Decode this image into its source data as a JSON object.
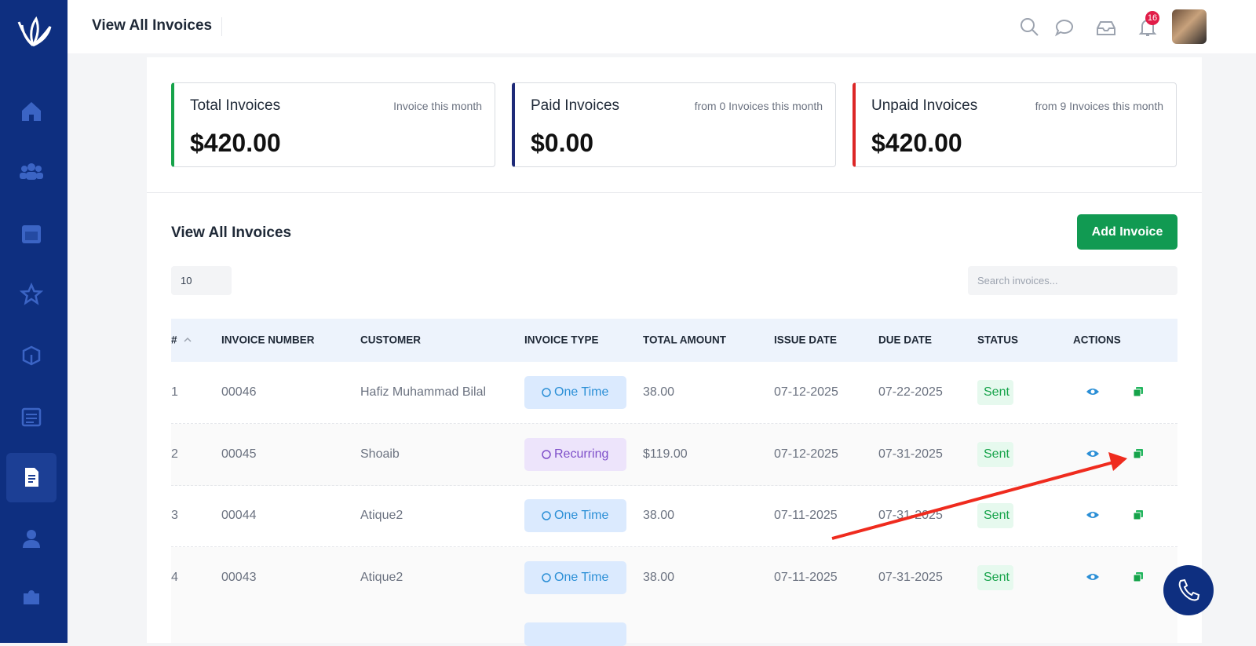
{
  "header": {
    "title": "View All Invoices",
    "notification_count": "16"
  },
  "cards": [
    {
      "title": "Total Invoices",
      "subtitle": "Invoice this month",
      "amount": "$420.00"
    },
    {
      "title": "Paid Invoices",
      "subtitle": "from 0 Invoices this month",
      "amount": "$0.00"
    },
    {
      "title": "Unpaid Invoices",
      "subtitle": "from 9 Invoices this month",
      "amount": "$420.00"
    }
  ],
  "section": {
    "title": "View All Invoices",
    "add_button": "Add Invoice",
    "page_size": "10",
    "search_placeholder": "Search invoices..."
  },
  "table": {
    "headers": [
      "#",
      "INVOICE NUMBER",
      "CUSTOMER",
      "INVOICE TYPE",
      "TOTAL AMOUNT",
      "ISSUE DATE",
      "DUE DATE",
      "STATUS",
      "ACTIONS"
    ],
    "rows": [
      [
        "1",
        "00046",
        "Hafiz Muhammad Bilal",
        "One Time",
        "38.00",
        "07-12-2025",
        "07-22-2025",
        "Sent"
      ],
      [
        "2",
        "00045",
        "Shoaib",
        "Recurring",
        "$119.00",
        "07-12-2025",
        "07-31-2025",
        "Sent"
      ],
      [
        "3",
        "00044",
        "Atique2",
        "One Time",
        "38.00",
        "07-11-2025",
        "07-31-2025",
        "Sent"
      ],
      [
        "4",
        "00043",
        "Atique2",
        "One Time",
        "38.00",
        "07-11-2025",
        "07-31-2025",
        "Sent"
      ]
    ]
  }
}
